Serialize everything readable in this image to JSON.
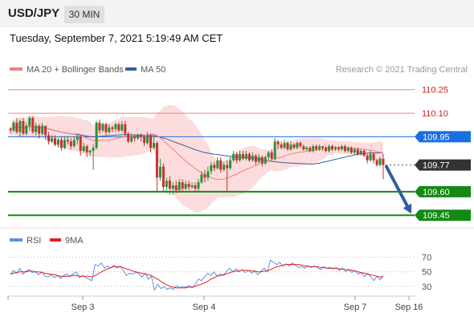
{
  "header": {
    "symbol": "USD/JPY",
    "timeframe": "30 MIN"
  },
  "timestamp": "Tuesday, September 7, 2021 5:19:49 AM CET",
  "legend": {
    "ma20": "MA 20 + Bollinger Bands",
    "ma50": "MA 50",
    "credit": "Research © 2021 Trading Central",
    "rsi": "RSI",
    "rsi_ma": "9MA"
  },
  "colors": {
    "bull": "#27923a",
    "bear": "#c83030",
    "ma20": "#f08080",
    "ma50": "#3a5fa0",
    "band": "#fcdcdc",
    "blue_label": "#1a6fe0",
    "green": "#138a13",
    "current": "#333333",
    "red_text": "#d02020",
    "rsi": "#6090e0",
    "rsi_ma": "#e02020",
    "arrow": "#2f5f9f"
  },
  "chart_data": [
    {
      "type": "candlestick",
      "title": "USD/JPY 30 MIN",
      "x_ticks": [
        "Sep 3",
        "Sep 4",
        "Sep 7",
        "Sep 16"
      ],
      "y_range": [
        109.4,
        110.31
      ],
      "levels": [
        {
          "label": "110.25",
          "value": 110.25,
          "style": "resistance"
        },
        {
          "label": "110.10",
          "value": 110.1,
          "style": "resistance"
        },
        {
          "label": "109.95",
          "value": 109.95,
          "style": "pivot"
        },
        {
          "label": "109.77",
          "value": 109.77,
          "style": "current"
        },
        {
          "label": "109.60",
          "value": 109.6,
          "style": "support"
        },
        {
          "label": "109.45",
          "value": 109.45,
          "style": "support"
        }
      ],
      "forecast_arrow": {
        "from": 109.77,
        "to": 109.45
      },
      "candles": [
        [
          110.0,
          109.99,
          110.01,
          109.97
        ],
        [
          109.99,
          110.04,
          110.05,
          109.98
        ],
        [
          110.04,
          109.98,
          110.07,
          109.97
        ],
        [
          109.98,
          110.05,
          110.06,
          109.95
        ],
        [
          110.05,
          109.97,
          110.07,
          109.96
        ],
        [
          109.97,
          110.02,
          110.04,
          109.96
        ],
        [
          110.02,
          110.07,
          110.08,
          109.99
        ],
        [
          110.07,
          109.98,
          110.08,
          109.97
        ],
        [
          109.98,
          110.02,
          110.04,
          109.96
        ],
        [
          110.02,
          109.97,
          110.03,
          109.94
        ],
        [
          109.97,
          110.02,
          110.04,
          109.96
        ],
        [
          110.02,
          109.96,
          110.02,
          109.93
        ],
        [
          109.96,
          109.92,
          109.98,
          109.9
        ],
        [
          109.92,
          109.94,
          109.96,
          109.91
        ],
        [
          109.94,
          109.9,
          109.96,
          109.89
        ],
        [
          109.9,
          109.93,
          109.94,
          109.88
        ],
        [
          109.93,
          109.88,
          109.95,
          109.86
        ],
        [
          109.88,
          109.93,
          109.95,
          109.87
        ],
        [
          109.93,
          109.92,
          109.95,
          109.9
        ],
        [
          109.92,
          109.89,
          109.94,
          109.87
        ],
        [
          109.89,
          109.93,
          109.95,
          109.88
        ],
        [
          109.93,
          109.95,
          109.97,
          109.9
        ],
        [
          109.95,
          109.86,
          109.96,
          109.83
        ],
        [
          109.86,
          109.89,
          109.91,
          109.85
        ],
        [
          109.89,
          109.85,
          109.9,
          109.82
        ],
        [
          109.85,
          109.86,
          109.87,
          109.83
        ],
        [
          109.86,
          109.88,
          109.9,
          109.74
        ],
        [
          109.88,
          110.04,
          110.05,
          109.87
        ],
        [
          110.04,
          109.99,
          110.06,
          109.97
        ],
        [
          109.99,
          110.03,
          110.04,
          109.98
        ],
        [
          110.03,
          109.98,
          110.04,
          109.96
        ],
        [
          109.98,
          110.01,
          110.03,
          109.97
        ],
        [
          110.01,
          110.0,
          110.02,
          109.98
        ],
        [
          110.0,
          110.03,
          110.04,
          109.98
        ],
        [
          110.03,
          109.99,
          110.04,
          109.98
        ],
        [
          109.99,
          110.03,
          110.05,
          109.98
        ],
        [
          110.03,
          109.97,
          110.05,
          109.95
        ],
        [
          109.97,
          109.92,
          109.98,
          109.91
        ],
        [
          109.92,
          109.95,
          109.97,
          109.91
        ],
        [
          109.95,
          109.94,
          109.96,
          109.92
        ],
        [
          109.94,
          109.96,
          109.97,
          109.93
        ],
        [
          109.96,
          109.95,
          109.97,
          109.92
        ],
        [
          109.95,
          109.91,
          109.96,
          109.89
        ],
        [
          109.91,
          109.96,
          109.98,
          109.9
        ],
        [
          109.96,
          109.88,
          109.97,
          109.85
        ],
        [
          109.88,
          109.91,
          109.95,
          109.87
        ],
        [
          109.91,
          109.69,
          109.92,
          109.6
        ],
        [
          109.69,
          109.76,
          109.81,
          109.67
        ],
        [
          109.76,
          109.63,
          109.78,
          109.6
        ],
        [
          109.63,
          109.67,
          109.69,
          109.59
        ],
        [
          109.67,
          109.62,
          109.7,
          109.58
        ],
        [
          109.62,
          109.64,
          109.66,
          109.58
        ],
        [
          109.64,
          109.61,
          109.67,
          109.59
        ],
        [
          109.61,
          109.66,
          109.68,
          109.6
        ],
        [
          109.66,
          109.62,
          109.68,
          109.6
        ],
        [
          109.62,
          109.65,
          109.67,
          109.61
        ],
        [
          109.65,
          109.63,
          109.67,
          109.61
        ],
        [
          109.63,
          109.64,
          109.66,
          109.62
        ],
        [
          109.64,
          109.62,
          109.66,
          109.6
        ],
        [
          109.62,
          109.66,
          109.68,
          109.6
        ],
        [
          109.66,
          109.71,
          109.73,
          109.65
        ],
        [
          109.71,
          109.69,
          109.74,
          109.66
        ],
        [
          109.69,
          109.73,
          109.76,
          109.67
        ],
        [
          109.73,
          109.77,
          109.79,
          109.71
        ],
        [
          109.77,
          109.75,
          109.79,
          109.73
        ],
        [
          109.75,
          109.8,
          109.82,
          109.74
        ],
        [
          109.8,
          109.74,
          109.82,
          109.72
        ],
        [
          109.74,
          109.77,
          109.79,
          109.73
        ],
        [
          109.77,
          109.75,
          109.8,
          109.6
        ],
        [
          109.75,
          109.8,
          109.82,
          109.74
        ],
        [
          109.8,
          109.84,
          109.86,
          109.79
        ],
        [
          109.84,
          109.8,
          109.85,
          109.78
        ],
        [
          109.8,
          109.84,
          109.86,
          109.79
        ],
        [
          109.84,
          109.81,
          109.86,
          109.8
        ],
        [
          109.81,
          109.84,
          109.86,
          109.8
        ],
        [
          109.84,
          109.8,
          109.85,
          109.79
        ],
        [
          109.8,
          109.83,
          109.85,
          109.79
        ],
        [
          109.83,
          109.79,
          109.84,
          109.77
        ],
        [
          109.79,
          109.82,
          109.84,
          109.78
        ],
        [
          109.82,
          109.78,
          109.83,
          109.76
        ],
        [
          109.78,
          109.82,
          109.83,
          109.77
        ],
        [
          109.82,
          109.85,
          109.86,
          109.8
        ],
        [
          109.85,
          109.81,
          109.87,
          109.8
        ],
        [
          109.81,
          109.92,
          109.94,
          109.8
        ],
        [
          109.92,
          109.9,
          109.93,
          109.87
        ],
        [
          109.9,
          109.88,
          109.92,
          109.87
        ],
        [
          109.88,
          109.91,
          109.93,
          109.87
        ],
        [
          109.91,
          109.87,
          109.92,
          109.86
        ],
        [
          109.87,
          109.9,
          109.92,
          109.86
        ],
        [
          109.9,
          109.88,
          109.91,
          109.87
        ],
        [
          109.88,
          109.91,
          109.92,
          109.87
        ],
        [
          109.91,
          109.89,
          109.92,
          109.88
        ],
        [
          109.89,
          109.87,
          109.9,
          109.86
        ],
        [
          109.87,
          109.88,
          109.89,
          109.86
        ],
        [
          109.88,
          109.86,
          109.89,
          109.85
        ],
        [
          109.86,
          109.89,
          109.9,
          109.85
        ],
        [
          109.89,
          109.87,
          109.9,
          109.86
        ],
        [
          109.87,
          109.89,
          109.9,
          109.86
        ],
        [
          109.89,
          109.88,
          109.89,
          109.86
        ],
        [
          109.88,
          109.86,
          109.89,
          109.85
        ],
        [
          109.86,
          109.89,
          109.9,
          109.85
        ],
        [
          109.89,
          109.87,
          109.9,
          109.86
        ],
        [
          109.87,
          109.88,
          109.89,
          109.86
        ],
        [
          109.88,
          109.87,
          109.89,
          109.86
        ],
        [
          109.87,
          109.89,
          109.9,
          109.86
        ],
        [
          109.89,
          109.86,
          109.9,
          109.85
        ],
        [
          109.86,
          109.88,
          109.89,
          109.85
        ],
        [
          109.88,
          109.85,
          109.89,
          109.84
        ],
        [
          109.85,
          109.87,
          109.88,
          109.84
        ],
        [
          109.87,
          109.84,
          109.88,
          109.83
        ],
        [
          109.84,
          109.86,
          109.87,
          109.83
        ],
        [
          109.86,
          109.83,
          109.87,
          109.82
        ],
        [
          109.83,
          109.8,
          109.84,
          109.78
        ],
        [
          109.8,
          109.84,
          109.86,
          109.79
        ],
        [
          109.84,
          109.8,
          109.85,
          109.78
        ],
        [
          109.8,
          109.77,
          109.81,
          109.76
        ],
        [
          109.77,
          109.81,
          109.82,
          109.76
        ],
        [
          109.81,
          109.77,
          109.84,
          109.68
        ]
      ]
    },
    {
      "type": "line",
      "title": "RSI",
      "y_range": [
        20,
        75
      ],
      "y_ticks": [
        70,
        50,
        30
      ],
      "series": [
        {
          "name": "RSI",
          "values": [
            46,
            52,
            48,
            55,
            47,
            51,
            53,
            49,
            50,
            46,
            50,
            44,
            43,
            46,
            42,
            45,
            41,
            45,
            47,
            44,
            47,
            50,
            42,
            45,
            42,
            40,
            38,
            60,
            58,
            62,
            55,
            58,
            55,
            59,
            55,
            58,
            52,
            45,
            48,
            47,
            49,
            47,
            43,
            48,
            40,
            44,
            25,
            33,
            27,
            30,
            26,
            28,
            26,
            31,
            28,
            30,
            29,
            31,
            28,
            33,
            40,
            38,
            43,
            48,
            45,
            50,
            44,
            47,
            45,
            51,
            55,
            50,
            54,
            50,
            53,
            49,
            52,
            48,
            51,
            46,
            51,
            55,
            50,
            66,
            63,
            60,
            63,
            58,
            61,
            58,
            62,
            59,
            56,
            57,
            55,
            58,
            56,
            58,
            56,
            53,
            57,
            55,
            56,
            54,
            56,
            52,
            55,
            50,
            53,
            49,
            52,
            47,
            49,
            43,
            48,
            43,
            38,
            44,
            39,
            45
          ]
        },
        {
          "name": "9MA",
          "values": [
            47,
            48,
            49,
            50,
            50,
            50,
            51,
            51,
            50,
            50,
            49,
            48,
            47,
            47,
            46,
            45,
            44,
            44,
            44,
            44,
            45,
            45,
            44,
            44,
            44,
            44,
            43,
            45,
            47,
            50,
            52,
            54,
            56,
            57,
            57,
            57,
            56,
            54,
            53,
            51,
            50,
            49,
            48,
            47,
            46,
            45,
            42,
            40,
            37,
            34,
            32,
            30,
            29,
            28,
            28,
            28,
            28,
            29,
            29,
            30,
            32,
            33,
            35,
            37,
            40,
            42,
            44,
            45,
            46,
            47,
            49,
            50,
            51,
            51,
            52,
            52,
            52,
            51,
            51,
            50,
            50,
            51,
            51,
            53,
            55,
            57,
            58,
            59,
            60,
            60,
            60,
            60,
            60,
            59,
            58,
            58,
            57,
            57,
            57,
            56,
            56,
            55,
            55,
            55,
            55,
            54,
            54,
            53,
            53,
            52,
            51,
            50,
            49,
            48,
            47,
            46,
            45,
            44,
            43,
            43
          ]
        }
      ]
    }
  ]
}
